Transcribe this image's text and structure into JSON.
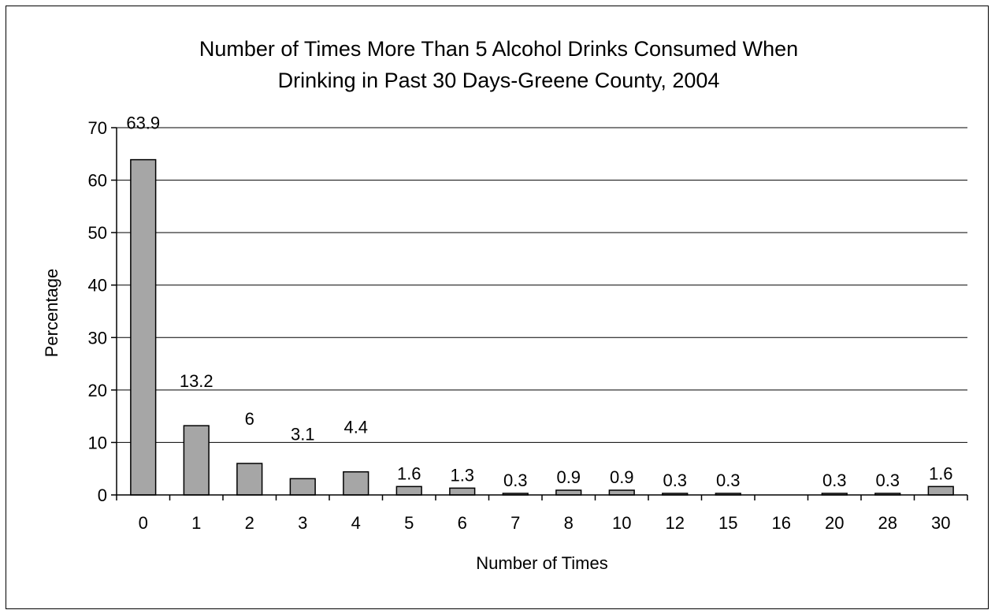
{
  "chart_data": {
    "type": "bar",
    "title_lines": [
      "Number of Times More Than 5 Alcohol Drinks Consumed When",
      "Drinking in Past 30 Days-Greene County, 2004"
    ],
    "xlabel": "Number of Times",
    "ylabel": "Percentage",
    "categories": [
      "0",
      "1",
      "2",
      "3",
      "4",
      "5",
      "6",
      "7",
      "8",
      "10",
      "12",
      "15",
      "16",
      "20",
      "28",
      "30"
    ],
    "values": [
      63.9,
      13.2,
      6,
      3.1,
      4.4,
      1.6,
      1.3,
      0.3,
      0.9,
      0.9,
      0.3,
      0.3,
      null,
      0.3,
      0.3,
      1.6
    ],
    "data_labels": [
      "63.9",
      "13.2",
      "6",
      "3.1",
      "4.4",
      "1.6",
      "1.3",
      "0.3",
      "0.9",
      "0.9",
      "0.3",
      "0.3",
      "",
      "0.3",
      "0.3",
      "1.6"
    ],
    "ylim": [
      0,
      70
    ],
    "yticks": [
      0,
      10,
      20,
      30,
      40,
      50,
      60,
      70
    ],
    "grid": true,
    "legend": "none",
    "colors": {
      "bar_fill": "#a6a6a6",
      "bar_stroke": "#000000",
      "grid": "#000000"
    }
  }
}
